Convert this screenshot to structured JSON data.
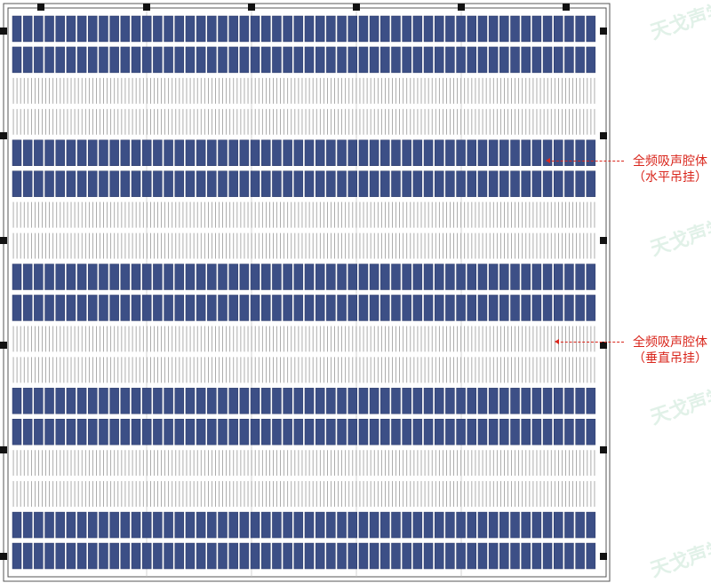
{
  "drawing": {
    "row_pattern": [
      "horizontal",
      "horizontal",
      "vertical",
      "vertical",
      "horizontal",
      "horizontal",
      "vertical",
      "vertical",
      "horizontal",
      "horizontal",
      "vertical",
      "vertical",
      "horizontal",
      "horizontal",
      "vertical",
      "vertical",
      "horizontal",
      "horizontal"
    ],
    "panel_columns": 54,
    "colors": {
      "border": "#555555",
      "panel_fill": "#3c4f86",
      "panel_edge": "#2a3866",
      "vertical_baffle": "#8a8a8a",
      "callout": "#d9261c",
      "watermark": "#78be96"
    }
  },
  "callouts": {
    "horizontal": {
      "line1": "全频吸声腔体",
      "line2": "（水平吊挂）"
    },
    "vertical": {
      "line1": "全频吸声腔体",
      "line2": "（垂直吊挂）"
    }
  },
  "watermark": {
    "text": "天戈声学"
  }
}
